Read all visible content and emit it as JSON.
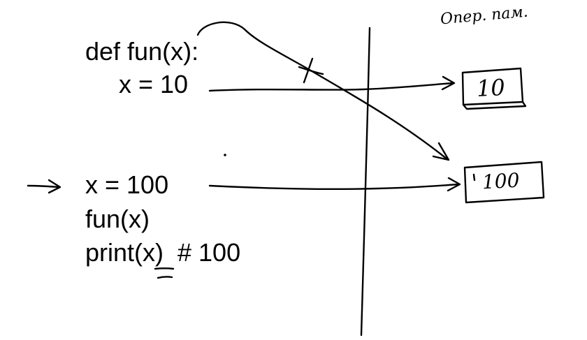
{
  "code": {
    "def_line": "def fun(x):",
    "assign_inner": "x = 10",
    "assign_outer": "x = 100",
    "call_line": "fun(x)",
    "print_line": "print(x)  # 100"
  },
  "memory": {
    "header": "Опер. пам.",
    "box_inner_value": "10",
    "box_outer_value": "100"
  },
  "colors": {
    "ink": "#000000",
    "background": "#ffffff"
  }
}
